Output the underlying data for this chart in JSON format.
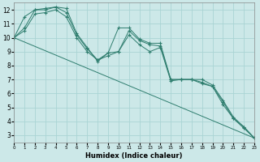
{
  "title": "",
  "xlabel": "Humidex (Indice chaleur)",
  "xlim": [
    0,
    23
  ],
  "ylim": [
    2.5,
    12.5
  ],
  "yticks": [
    3,
    4,
    5,
    6,
    7,
    8,
    9,
    10,
    11,
    12
  ],
  "xticks": [
    0,
    1,
    2,
    3,
    4,
    5,
    6,
    7,
    8,
    9,
    10,
    11,
    12,
    13,
    14,
    15,
    16,
    17,
    18,
    19,
    20,
    21,
    22,
    23
  ],
  "background_color": "#cce8e8",
  "grid_color": "#aad4d4",
  "line_color": "#2e7d6e",
  "lines": [
    {
      "x": [
        0,
        1,
        2,
        3,
        4,
        5,
        6,
        7,
        8,
        9,
        10,
        11,
        12,
        13,
        14,
        15,
        16,
        17,
        18,
        19,
        20,
        21,
        22,
        23
      ],
      "y": [
        10.0,
        10.7,
        12.0,
        12.1,
        12.2,
        12.1,
        10.3,
        9.3,
        8.3,
        8.9,
        10.7,
        10.7,
        9.9,
        9.6,
        9.6,
        7.0,
        7.0,
        7.0,
        7.0,
        6.6,
        5.5,
        4.3,
        3.6,
        2.8
      ]
    },
    {
      "x": [
        0,
        1,
        2,
        3,
        4,
        5,
        6,
        7,
        8,
        9,
        10,
        11,
        12,
        13,
        14,
        15,
        16,
        17,
        18,
        19,
        20,
        21,
        22,
        23
      ],
      "y": [
        10.0,
        11.5,
        12.0,
        12.0,
        12.2,
        11.8,
        10.2,
        9.2,
        8.4,
        8.9,
        9.0,
        10.5,
        9.8,
        9.5,
        9.4,
        7.0,
        7.0,
        7.0,
        6.8,
        6.5,
        5.4,
        4.2,
        3.6,
        2.8
      ]
    },
    {
      "x": [
        0,
        1,
        2,
        3,
        4,
        5,
        6,
        7,
        8,
        9,
        10,
        11,
        12,
        13,
        14,
        15,
        16,
        17,
        18,
        19,
        20,
        21,
        22,
        23
      ],
      "y": [
        10.0,
        10.5,
        11.7,
        11.8,
        12.0,
        11.5,
        10.0,
        9.0,
        8.4,
        8.7,
        9.0,
        10.2,
        9.5,
        9.0,
        9.3,
        6.9,
        7.0,
        7.0,
        6.7,
        6.5,
        5.2,
        4.2,
        3.5,
        2.8
      ]
    },
    {
      "x": [
        0,
        23
      ],
      "y": [
        10.0,
        2.8
      ]
    }
  ]
}
